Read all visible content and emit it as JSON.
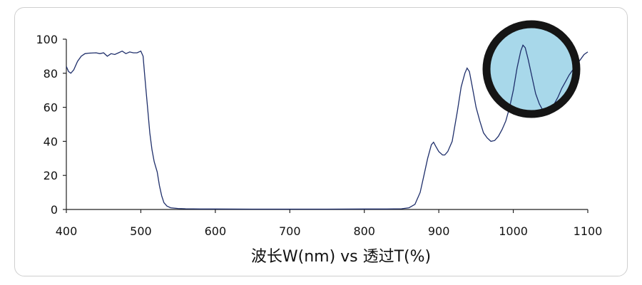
{
  "chart_data": {
    "type": "line",
    "title": "",
    "xlabel": "波长W(nm) vs 透过T(%)",
    "ylabel": "",
    "xlim": [
      400,
      1100
    ],
    "ylim": [
      0,
      100
    ],
    "x_ticks": [
      400,
      500,
      600,
      700,
      800,
      900,
      1000,
      1100
    ],
    "y_ticks": [
      0,
      20,
      40,
      60,
      80,
      100
    ],
    "grid": false,
    "colors": {
      "line": "#1f2f6b",
      "axis": "#222222",
      "lens_fill": "#a8d8ea",
      "lens_ring": "#151515"
    },
    "series": [
      {
        "values_xy": [
          [
            400,
            84
          ],
          [
            403,
            81
          ],
          [
            406,
            80
          ],
          [
            410,
            82
          ],
          [
            415,
            87
          ],
          [
            420,
            90
          ],
          [
            425,
            91.5
          ],
          [
            430,
            91.8
          ],
          [
            440,
            92
          ],
          [
            445,
            91.5
          ],
          [
            450,
            92
          ],
          [
            455,
            90
          ],
          [
            460,
            91.5
          ],
          [
            465,
            91
          ],
          [
            470,
            92
          ],
          [
            475,
            93
          ],
          [
            480,
            91.5
          ],
          [
            485,
            92.5
          ],
          [
            490,
            92
          ],
          [
            495,
            92
          ],
          [
            500,
            93
          ],
          [
            503,
            90
          ],
          [
            505,
            80
          ],
          [
            507,
            70
          ],
          [
            510,
            55
          ],
          [
            512,
            45
          ],
          [
            515,
            35
          ],
          [
            518,
            28
          ],
          [
            522,
            22
          ],
          [
            525,
            14
          ],
          [
            528,
            8
          ],
          [
            531,
            4
          ],
          [
            535,
            2
          ],
          [
            540,
            1
          ],
          [
            550,
            0.6
          ],
          [
            560,
            0.4
          ],
          [
            580,
            0.3
          ],
          [
            600,
            0.3
          ],
          [
            650,
            0.2
          ],
          [
            700,
            0.2
          ],
          [
            750,
            0.2
          ],
          [
            800,
            0.3
          ],
          [
            830,
            0.3
          ],
          [
            850,
            0.4
          ],
          [
            860,
            1
          ],
          [
            868,
            3
          ],
          [
            875,
            10
          ],
          [
            880,
            20
          ],
          [
            885,
            30
          ],
          [
            890,
            38
          ],
          [
            893,
            39.5
          ],
          [
            896,
            37
          ],
          [
            900,
            34
          ],
          [
            905,
            32
          ],
          [
            908,
            32
          ],
          [
            912,
            34
          ],
          [
            918,
            40
          ],
          [
            925,
            58
          ],
          [
            930,
            72
          ],
          [
            935,
            80
          ],
          [
            938,
            83
          ],
          [
            941,
            81
          ],
          [
            945,
            72
          ],
          [
            950,
            60
          ],
          [
            955,
            52
          ],
          [
            960,
            45
          ],
          [
            965,
            42
          ],
          [
            970,
            40
          ],
          [
            975,
            40.5
          ],
          [
            980,
            43
          ],
          [
            985,
            47
          ],
          [
            990,
            52
          ],
          [
            995,
            60
          ],
          [
            1000,
            70
          ],
          [
            1005,
            83
          ],
          [
            1010,
            93
          ],
          [
            1013,
            96.5
          ],
          [
            1016,
            95
          ],
          [
            1020,
            88
          ],
          [
            1025,
            78
          ],
          [
            1030,
            68
          ],
          [
            1035,
            62
          ],
          [
            1040,
            58
          ],
          [
            1045,
            57
          ],
          [
            1050,
            58
          ],
          [
            1055,
            62
          ],
          [
            1060,
            66
          ],
          [
            1065,
            71
          ],
          [
            1070,
            75
          ],
          [
            1075,
            79
          ],
          [
            1080,
            82
          ],
          [
            1085,
            85
          ],
          [
            1090,
            88
          ],
          [
            1095,
            91
          ],
          [
            1100,
            92.5
          ]
        ]
      }
    ]
  }
}
